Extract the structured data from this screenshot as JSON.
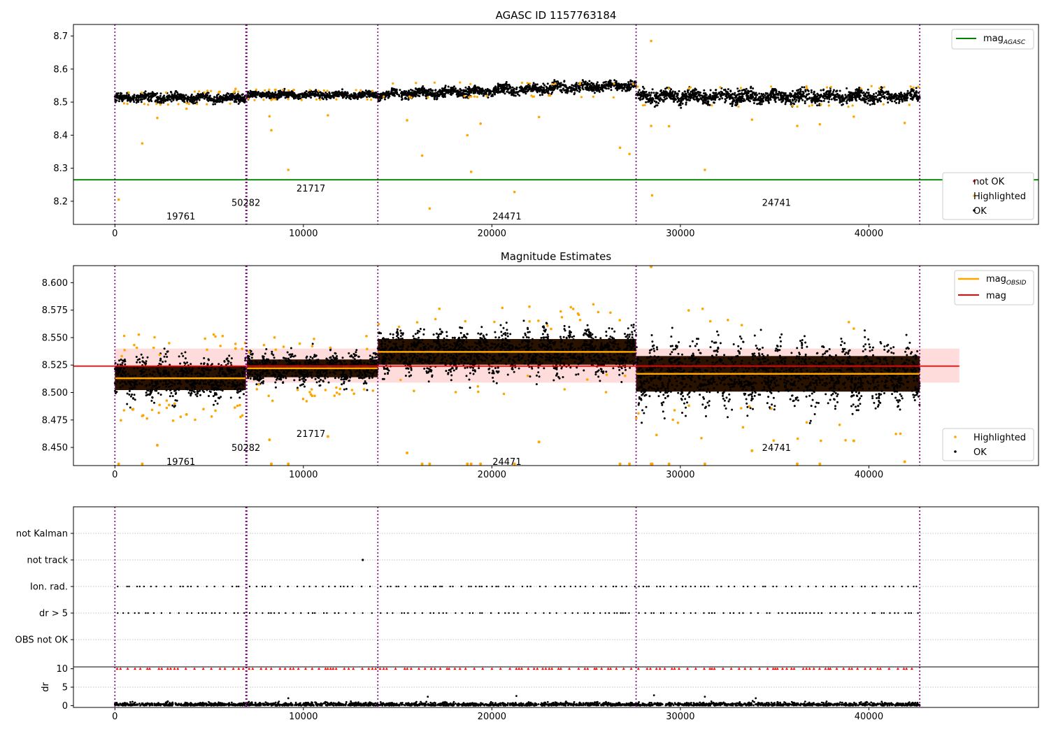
{
  "chart_data": [
    {
      "type": "scatter",
      "title": "AGASC ID 1157763184",
      "xlim": [
        -2200,
        49000
      ],
      "ylim": [
        8.13,
        8.735
      ],
      "x_ticks": [
        0,
        10000,
        20000,
        30000,
        40000
      ],
      "y_ticks": [
        8.2,
        8.3,
        8.4,
        8.5,
        8.6,
        8.7
      ],
      "grid": false,
      "obsid_boundaries": [
        0,
        6950,
        7000,
        13950,
        27650,
        42700
      ],
      "obsid_labels": [
        {
          "text": "19761",
          "x": 3500,
          "y": 8.155
        },
        {
          "text": "50282",
          "x": 6950,
          "y": 8.197
        },
        {
          "text": "21717",
          "x": 10400,
          "y": 8.24
        },
        {
          "text": "24471",
          "x": 20800,
          "y": 8.155
        },
        {
          "text": "24741",
          "x": 35100,
          "y": 8.197
        }
      ],
      "mag_agasc": 8.265,
      "segments": [
        {
          "x0": 0,
          "x1": 6950,
          "center": 8.513,
          "spread": 0.012
        },
        {
          "x0": 7000,
          "x1": 13950,
          "center": 8.522,
          "spread": 0.009
        },
        {
          "x0": 13950,
          "x1": 27650,
          "center": 8.537,
          "spread": 0.013
        },
        {
          "x0": 27650,
          "x1": 42700,
          "center": 8.517,
          "spread": 0.018
        }
      ],
      "highlighted": [
        [
          200,
          8.205
        ],
        [
          1450,
          8.375
        ],
        [
          2250,
          8.452
        ],
        [
          3800,
          8.48
        ],
        [
          6400,
          8.54
        ],
        [
          8300,
          8.415
        ],
        [
          8200,
          8.457
        ],
        [
          9200,
          8.295
        ],
        [
          11300,
          8.46
        ],
        [
          15500,
          8.445
        ],
        [
          16300,
          8.338
        ],
        [
          16700,
          8.178
        ],
        [
          18700,
          8.4
        ],
        [
          18900,
          8.289
        ],
        [
          19400,
          8.435
        ],
        [
          21200,
          8.228
        ],
        [
          22500,
          8.455
        ],
        [
          26800,
          8.362
        ],
        [
          27300,
          8.343
        ],
        [
          28450,
          8.685
        ],
        [
          28450,
          8.428
        ],
        [
          28500,
          8.218
        ],
        [
          29400,
          8.427
        ],
        [
          31300,
          8.295
        ],
        [
          33800,
          8.447
        ],
        [
          36200,
          8.428
        ],
        [
          37400,
          8.433
        ],
        [
          39200,
          8.456
        ],
        [
          41900,
          8.437
        ]
      ],
      "legend_upper": {
        "position": "upper right",
        "entries": [
          "mag$_{AGASC}$"
        ]
      },
      "legend_lower": {
        "position": "lower right",
        "entries": [
          "not OK",
          "Highlighted",
          "OK"
        ]
      },
      "colors": {
        "ok": "#000000",
        "highlighted": "#ffa500",
        "not_ok": "#ff0000",
        "agasc_line": "#008000",
        "boundary": "#800080"
      }
    },
    {
      "type": "scatter",
      "title": "Magnitude Estimates",
      "xlim": [
        -2200,
        49000
      ],
      "ylim": [
        8.4335,
        8.6155
      ],
      "x_ticks": [
        0,
        10000,
        20000,
        30000,
        40000
      ],
      "y_ticks": [
        8.45,
        8.475,
        8.5,
        8.525,
        8.55,
        8.575,
        8.6
      ],
      "grid": false,
      "mag": 8.524,
      "mag_band": [
        8.509,
        8.54
      ],
      "mag_xrange": [
        -2200,
        44800
      ],
      "mag_obsid": [
        {
          "x0": 0,
          "x1": 6950,
          "mag": 8.513
        },
        {
          "x0": 7000,
          "x1": 13950,
          "mag": 8.522
        },
        {
          "x0": 13950,
          "x1": 27650,
          "mag": 8.537
        },
        {
          "x0": 27650,
          "x1": 42700,
          "mag": 8.517
        }
      ],
      "obsid_labels": [
        {
          "text": "19761",
          "x": 3500,
          "y": 8.4372
        },
        {
          "text": "50282",
          "x": 6950,
          "y": 8.45
        },
        {
          "text": "21717",
          "x": 10400,
          "y": 8.4628
        },
        {
          "text": "24471",
          "x": 20800,
          "y": 8.4372
        },
        {
          "text": "24741",
          "x": 35100,
          "y": 8.45
        }
      ],
      "legend_upper": {
        "position": "upper right",
        "entries": [
          "mag$_{OBSID}$",
          "mag"
        ]
      },
      "legend_lower": {
        "position": "lower right",
        "entries": [
          "Highlighted",
          "OK"
        ]
      },
      "colors": {
        "mag": "#ff0000",
        "mag_obsid": "#ffa500",
        "band": "#ffdddd"
      }
    },
    {
      "type": "scatter",
      "categories": [
        "not Kalman",
        "not track",
        "Ion. rad.",
        "dr > 5",
        "OBS not OK"
      ],
      "xlim": [
        -2200,
        49000
      ],
      "x_ticks": [
        0,
        10000,
        20000,
        30000,
        40000
      ],
      "grid": "horizontal dotted",
      "flag_points": {
        "not track": [
          13150
        ],
        "Ion. rad.": "sparse throughout all observations",
        "dr > 5": "sparse throughout all observations"
      }
    },
    {
      "type": "scatter",
      "ylabel": "dr",
      "xlim": [
        -2200,
        49000
      ],
      "ylim": [
        -0.5,
        10.5
      ],
      "y_ticks": [
        0,
        5,
        10
      ],
      "x_ticks": [
        0,
        10000,
        20000,
        30000,
        40000
      ],
      "dr_typical": [
        0,
        1.2
      ],
      "dr_capped_at": 10,
      "colors": {
        "points": "#000000",
        "capped": "#ff0000"
      }
    }
  ]
}
